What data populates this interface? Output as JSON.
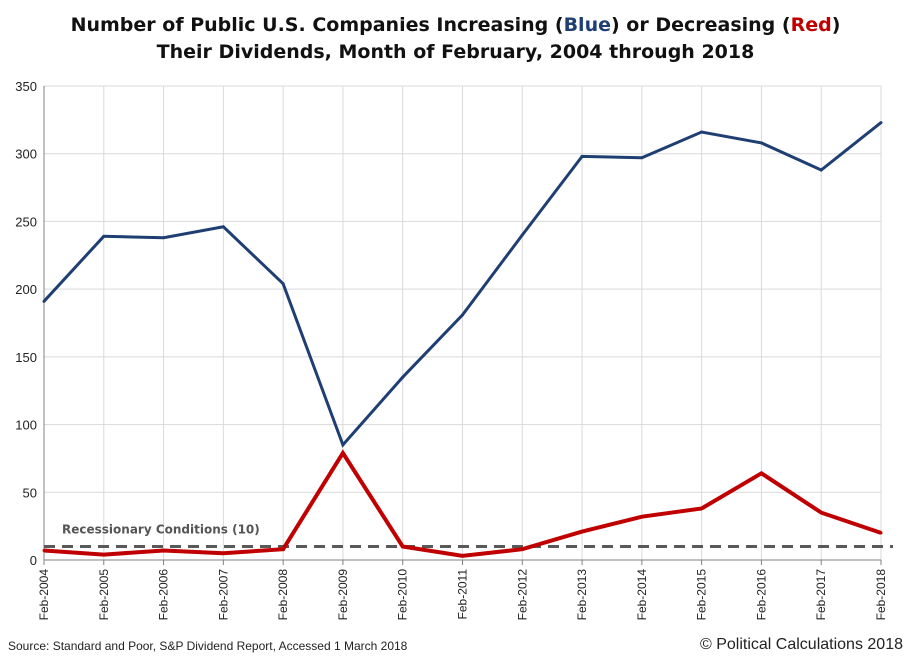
{
  "title": {
    "line1_a": "Number of Public U.S. Companies Increasing (",
    "line1_blue": "Blue",
    "line1_b": ") or Decreasing (",
    "line1_red": "Red",
    "line1_c": ")",
    "line2": "Their Dividends, Month of February, 2004 through 2018"
  },
  "source": "Source: Standard and Poor, S&P Dividend Report, Accessed 1 March 2018",
  "copyright": "© Political Calculations 2018",
  "colors": {
    "increasing": "#1f3f73",
    "decreasing": "#c00000",
    "recession": "#595959",
    "grid": "#d9d9d9"
  },
  "chart_data": {
    "type": "line",
    "categories": [
      "Feb-2004",
      "Feb-2005",
      "Feb-2006",
      "Feb-2007",
      "Feb-2008",
      "Feb-2009",
      "Feb-2010",
      "Feb-2011",
      "Feb-2012",
      "Feb-2013",
      "Feb-2014",
      "Feb-2015",
      "Feb-2016",
      "Feb-2017",
      "Feb-2018"
    ],
    "series": [
      {
        "key": "increasing",
        "values": [
          191,
          239,
          238,
          246,
          204,
          85,
          135,
          181,
          240,
          298,
          297,
          316,
          308,
          288,
          323
        ]
      },
      {
        "key": "decreasing",
        "values": [
          7,
          4,
          7,
          5,
          8,
          79,
          10,
          3,
          8,
          21,
          32,
          38,
          64,
          35,
          20
        ]
      }
    ],
    "reference_line": {
      "value": 10,
      "label": "Recessionary Conditions (10)"
    },
    "ylim": [
      0,
      350
    ],
    "yticks": [
      0,
      50,
      100,
      150,
      200,
      250,
      300,
      350
    ],
    "grid": true,
    "xlabel": "",
    "ylabel": ""
  }
}
